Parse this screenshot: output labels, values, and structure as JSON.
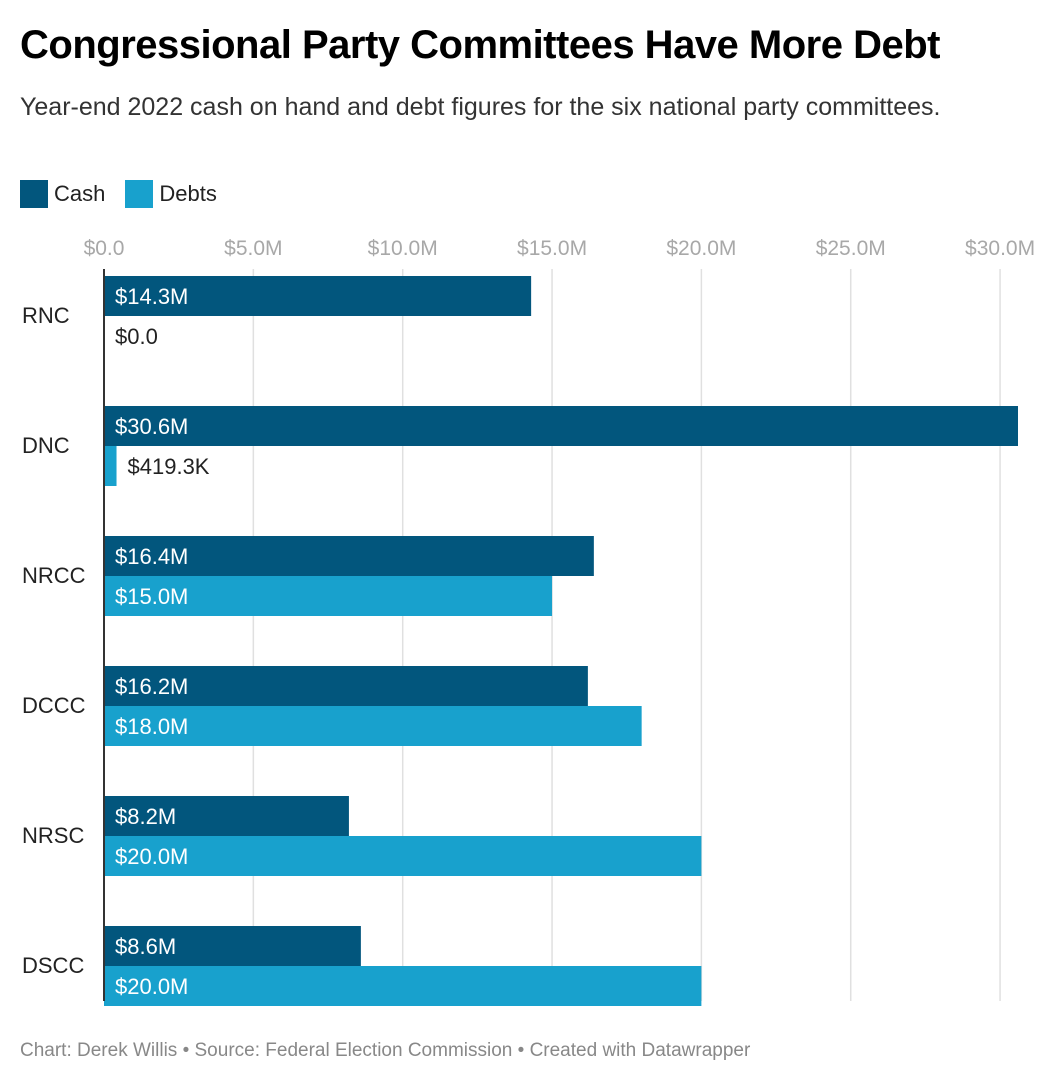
{
  "header": {
    "title": "Congressional Party Committees Have More Debt",
    "subtitle": "Year-end 2022 cash on hand and debt figures for the six national party committees."
  },
  "colors": {
    "cash": "#02567d",
    "debts": "#18a1cd",
    "grid": "#e0e0e0",
    "tick": "#a8a8a8"
  },
  "footer": {
    "text": "Chart: Derek Willis • Source: Federal Election Commission • Created with Datawrapper"
  },
  "chart_data": {
    "type": "bar",
    "orientation": "horizontal",
    "categories": [
      "RNC",
      "DNC",
      "NRCC",
      "DCCC",
      "NRSC",
      "DSCC"
    ],
    "series": [
      {
        "name": "Cash",
        "values": [
          14.3,
          30.6,
          16.4,
          16.2,
          8.2,
          8.6
        ],
        "labels": [
          "$14.3M",
          "$30.6M",
          "$16.4M",
          "$16.2M",
          "$8.2M",
          "$8.6M"
        ]
      },
      {
        "name": "Debts",
        "values": [
          0.0,
          0.4193,
          15.0,
          18.0,
          20.0,
          20.0
        ],
        "labels": [
          "$0.0",
          "$419.3K",
          "$15.0M",
          "$18.0M",
          "$20.0M",
          "$20.0M"
        ]
      }
    ],
    "x_ticks": [
      0,
      5,
      10,
      15,
      20,
      25,
      30
    ],
    "x_tick_labels": [
      "$0.0",
      "$5.0M",
      "$10.0M",
      "$15.0M",
      "$20.0M",
      "$25.0M",
      "$30.0M"
    ],
    "xlim": [
      0,
      30.6
    ],
    "grid": true,
    "legend_position": "top-left"
  }
}
